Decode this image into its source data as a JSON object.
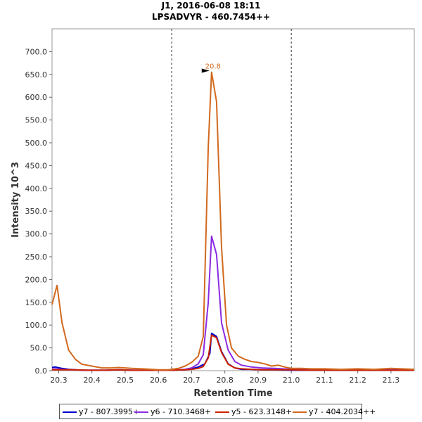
{
  "chart_data": {
    "type": "line",
    "title": "J1, 2016-06-08 18:11",
    "subtitle": "LPSADVYR - 460.7454++",
    "xlabel": "Retention Time",
    "ylabel": "Intensity 10^3",
    "xlim": [
      20.28,
      21.37
    ],
    "ylim": [
      0,
      750
    ],
    "xticks": [
      "20.3",
      "20.4",
      "20.5",
      "20.6",
      "20.7",
      "20.8",
      "20.9",
      "21.0",
      "21.1",
      "21.2",
      "21.3"
    ],
    "yticks": [
      "0.0",
      "50.0",
      "100.0",
      "150.0",
      "200.0",
      "250.0",
      "300.0",
      "350.0",
      "400.0",
      "450.0",
      "500.0",
      "550.0",
      "600.0",
      "650.0",
      "700.0"
    ],
    "vlines": [
      20.64,
      21.0
    ],
    "peak_annotation": {
      "x": 20.76,
      "y": 655,
      "label": "20.8"
    },
    "grid": false,
    "legend_position": "bottom",
    "series": [
      {
        "name": "y7 - 807.3995+",
        "color": "#0000cc",
        "x": [
          20.28,
          20.29,
          20.31,
          20.33,
          20.35,
          20.37,
          20.4,
          20.44,
          20.48,
          20.52,
          20.56,
          20.6,
          20.64,
          20.68,
          20.7,
          20.72,
          20.74,
          20.755,
          20.76,
          20.775,
          20.79,
          20.81,
          20.83,
          20.85,
          20.88,
          20.91,
          20.95,
          21.0,
          21.05,
          21.1,
          21.15,
          21.2,
          21.25,
          21.3,
          21.37
        ],
        "y": [
          7,
          8,
          5,
          3,
          2,
          1,
          1,
          1,
          2,
          1,
          1,
          1,
          1,
          2,
          4,
          8,
          15,
          38,
          82,
          75,
          42,
          15,
          6,
          3,
          3,
          2,
          2,
          1,
          1,
          1,
          1,
          1,
          1,
          1,
          1
        ]
      },
      {
        "name": "y6 - 710.3468+",
        "color": "#8a2be2",
        "x": [
          20.28,
          20.29,
          20.31,
          20.33,
          20.35,
          20.37,
          20.4,
          20.44,
          20.48,
          20.52,
          20.56,
          20.6,
          20.64,
          20.68,
          20.7,
          20.72,
          20.735,
          20.75,
          20.76,
          20.775,
          20.79,
          20.81,
          20.83,
          20.85,
          20.88,
          20.91,
          20.95,
          21.0,
          21.05,
          21.1,
          21.15,
          21.2,
          21.25,
          21.3,
          21.37
        ],
        "y": [
          3,
          4,
          3,
          2,
          2,
          1,
          1,
          1,
          2,
          1,
          1,
          1,
          1,
          3,
          6,
          15,
          35,
          150,
          295,
          255,
          105,
          45,
          20,
          12,
          8,
          6,
          5,
          3,
          3,
          2,
          2,
          2,
          2,
          2,
          2
        ]
      },
      {
        "name": "y5 - 623.3148+",
        "color": "#cc2200",
        "x": [
          20.28,
          20.3,
          20.34,
          20.4,
          20.44,
          20.48,
          20.52,
          20.56,
          20.6,
          20.64,
          20.68,
          20.7,
          20.72,
          20.735,
          20.75,
          20.76,
          20.775,
          20.79,
          20.81,
          20.83,
          20.85,
          20.88,
          20.91,
          20.95,
          21.0,
          21.05,
          21.1,
          21.15,
          21.2,
          21.25,
          21.3,
          21.37
        ],
        "y": [
          2,
          2,
          2,
          1,
          1,
          2,
          1,
          1,
          1,
          1,
          2,
          3,
          5,
          9,
          28,
          78,
          72,
          40,
          14,
          6,
          4,
          3,
          2,
          2,
          2,
          1,
          1,
          1,
          1,
          1,
          1,
          1
        ]
      },
      {
        "name": "y7 - 404.2034++",
        "color": "#d2691e",
        "x": [
          20.28,
          20.295,
          20.31,
          20.33,
          20.35,
          20.37,
          20.4,
          20.43,
          20.46,
          20.48,
          20.5,
          20.52,
          20.55,
          20.58,
          20.6,
          20.63,
          20.66,
          20.68,
          20.7,
          20.72,
          20.735,
          20.75,
          20.76,
          20.775,
          20.79,
          20.805,
          20.82,
          20.84,
          20.86,
          20.88,
          20.9,
          20.92,
          20.94,
          20.96,
          20.98,
          21.0,
          21.03,
          21.06,
          21.1,
          21.15,
          21.2,
          21.25,
          21.3,
          21.37
        ],
        "y": [
          145,
          187,
          105,
          45,
          25,
          14,
          10,
          6,
          6,
          7,
          6,
          5,
          4,
          3,
          2,
          2,
          5,
          10,
          18,
          32,
          75,
          490,
          655,
          590,
          270,
          100,
          50,
          32,
          25,
          20,
          18,
          15,
          10,
          12,
          8,
          5,
          5,
          4,
          4,
          3,
          4,
          3,
          5,
          3
        ]
      }
    ]
  }
}
